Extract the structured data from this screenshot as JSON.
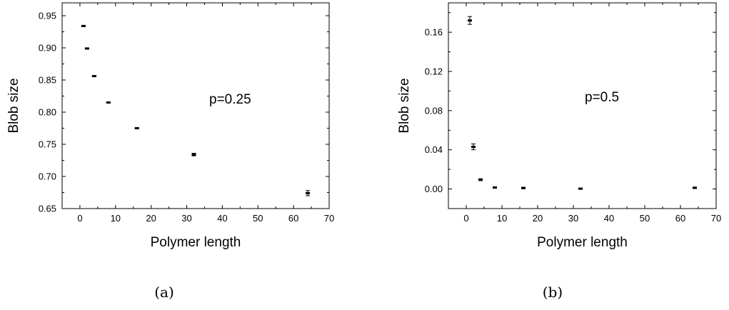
{
  "chart_data": [
    {
      "type": "scatter",
      "panel_label": "(a)",
      "annotation": "p=0.25",
      "xlabel": "Polymer length",
      "ylabel": "Blob size",
      "xlim": [
        -5,
        70
      ],
      "ylim": [
        0.65,
        0.97
      ],
      "xticks": [
        0,
        10,
        20,
        30,
        40,
        50,
        60,
        70
      ],
      "yticks": [
        0.65,
        0.7,
        0.75,
        0.8,
        0.85,
        0.9,
        0.95
      ],
      "ytick_labels": [
        "0.65",
        "0.70",
        "0.75",
        "0.80",
        "0.85",
        "0.90",
        "0.95"
      ],
      "grid": false,
      "points": [
        {
          "x": 1,
          "y": 0.934,
          "err": 0.001
        },
        {
          "x": 2,
          "y": 0.899,
          "err": 0.001
        },
        {
          "x": 4,
          "y": 0.856,
          "err": 0.001
        },
        {
          "x": 8,
          "y": 0.815,
          "err": 0.001
        },
        {
          "x": 16,
          "y": 0.775,
          "err": 0.001
        },
        {
          "x": 32,
          "y": 0.734,
          "err": 0.002
        },
        {
          "x": 64,
          "y": 0.674,
          "err": 0.004
        }
      ]
    },
    {
      "type": "scatter",
      "panel_label": "(b)",
      "annotation": "p=0.5",
      "xlabel": "Polymer length",
      "ylabel": "Blob size",
      "xlim": [
        -5,
        70
      ],
      "ylim": [
        -0.02,
        0.19
      ],
      "xticks": [
        0,
        10,
        20,
        30,
        40,
        50,
        60,
        70
      ],
      "yticks": [
        0.0,
        0.04,
        0.08,
        0.12,
        0.16
      ],
      "ytick_labels": [
        "0.00",
        "0.04",
        "0.08",
        "0.12",
        "0.16"
      ],
      "grid": false,
      "points": [
        {
          "x": 1,
          "y": 0.172,
          "err": 0.004
        },
        {
          "x": 2,
          "y": 0.043,
          "err": 0.003
        },
        {
          "x": 4,
          "y": 0.0095,
          "err": 0.001
        },
        {
          "x": 8,
          "y": 0.0015,
          "err": 0.0008
        },
        {
          "x": 16,
          "y": 0.001,
          "err": 0.0008
        },
        {
          "x": 32,
          "y": 0.0003,
          "err": 0.0006
        },
        {
          "x": 64,
          "y": 0.0012,
          "err": 0.0008
        }
      ]
    }
  ]
}
